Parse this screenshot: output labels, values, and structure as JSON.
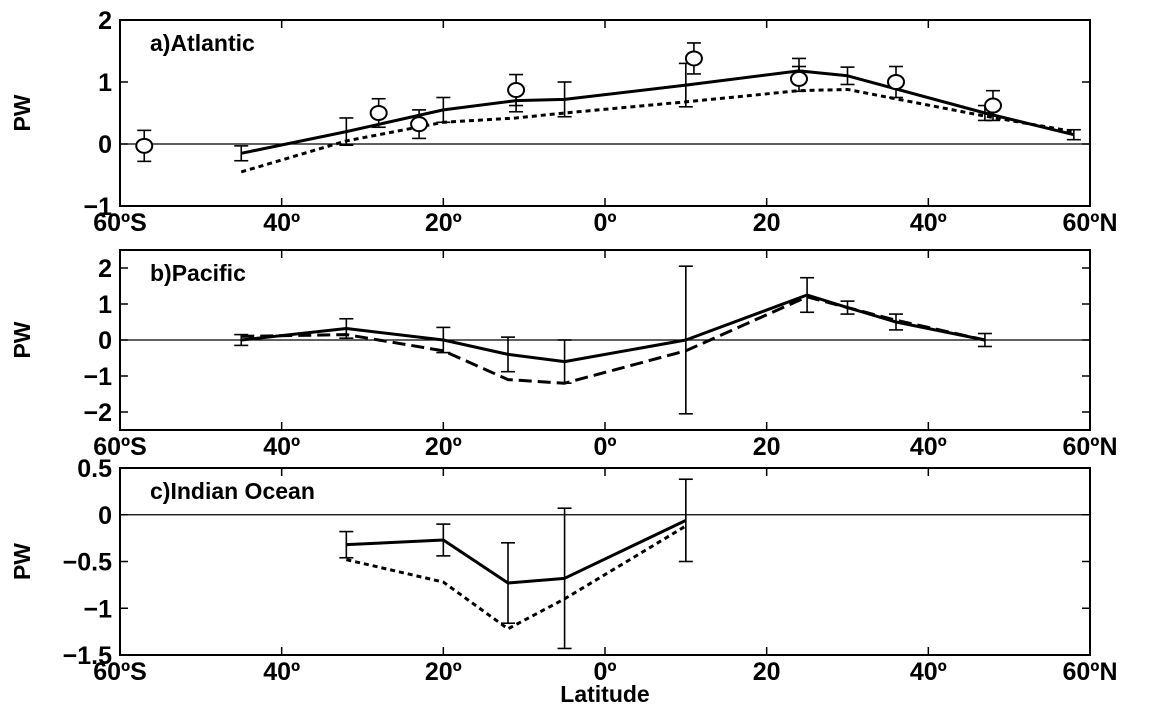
{
  "chart_data": [
    {
      "type": "line",
      "title": "a)Atlantic",
      "ylabel": "PW",
      "xlabel": "",
      "xlim": [
        -60,
        60
      ],
      "ylim": [
        -1,
        2
      ],
      "x_ticks": [
        -60,
        -40,
        -20,
        0,
        20,
        40,
        60
      ],
      "x_tick_labels": [
        "60ºS",
        "40º",
        "20º",
        "0º",
        "20",
        "40º",
        "60ºN"
      ],
      "y_ticks": [
        -1,
        0,
        1,
        2
      ],
      "y_tick_labels": [
        "−1",
        "0",
        "1",
        "2"
      ],
      "zero_line": true,
      "series": [
        {
          "style": "solid",
          "x": [
            -45,
            -32,
            -20,
            -11,
            -5,
            10,
            24,
            30,
            47,
            58
          ],
          "y": [
            -0.15,
            0.2,
            0.55,
            0.7,
            0.72,
            0.95,
            1.18,
            1.1,
            0.5,
            0.15
          ]
        },
        {
          "style": "dotted",
          "x": [
            -45,
            -32,
            -20,
            -11,
            -5,
            10,
            24,
            30,
            47,
            58
          ],
          "y": [
            -0.45,
            0.05,
            0.35,
            0.42,
            0.5,
            0.68,
            0.86,
            0.88,
            0.45,
            0.2
          ]
        },
        {
          "style": "errorbar",
          "x": [
            -45,
            -32,
            -20,
            -11,
            -5,
            10,
            24,
            30,
            47,
            58
          ],
          "y": [
            -0.15,
            0.2,
            0.55,
            0.7,
            0.72,
            0.95,
            1.18,
            1.1,
            0.5,
            0.15
          ],
          "err": [
            0.12,
            0.22,
            0.2,
            0.18,
            0.28,
            0.35,
            0.2,
            0.14,
            0.12,
            0.08
          ]
        },
        {
          "style": "circle",
          "x": [
            -57,
            -28,
            -23,
            -11,
            11,
            24,
            36,
            48
          ],
          "y": [
            -0.03,
            0.5,
            0.32,
            0.87,
            1.38,
            1.05,
            1.0,
            0.62
          ],
          "err": [
            0.25,
            0.23,
            0.23,
            0.25,
            0.25,
            0.2,
            0.25,
            0.24
          ]
        }
      ]
    },
    {
      "type": "line",
      "title": "b)Pacific",
      "ylabel": "PW",
      "xlabel": "",
      "xlim": [
        -60,
        60
      ],
      "ylim": [
        -2.5,
        2.5
      ],
      "x_ticks": [
        -60,
        -40,
        -20,
        0,
        20,
        40,
        60
      ],
      "x_tick_labels": [
        "60ºS",
        "40º",
        "20º",
        "0º",
        "20",
        "40º",
        "60ºN"
      ],
      "y_ticks": [
        -2,
        -1,
        0,
        1,
        2
      ],
      "y_tick_labels": [
        "−2",
        "−1",
        "0",
        "1",
        "2"
      ],
      "zero_line": true,
      "series": [
        {
          "style": "solid",
          "x": [
            -45,
            -32,
            -20,
            -12,
            -5,
            10,
            25,
            30,
            36,
            47
          ],
          "y": [
            0.0,
            0.32,
            0.0,
            -0.4,
            -0.6,
            0.0,
            1.25,
            0.9,
            0.5,
            0.0
          ]
        },
        {
          "style": "dashed",
          "x": [
            -45,
            -32,
            -20,
            -12,
            -5,
            10,
            25,
            30,
            36,
            47
          ],
          "y": [
            0.1,
            0.15,
            -0.3,
            -1.1,
            -1.2,
            -0.3,
            1.2,
            0.9,
            0.55,
            0.0
          ]
        },
        {
          "style": "errorbar",
          "x": [
            -45,
            -32,
            -20,
            -12,
            -5,
            10,
            25,
            30,
            36,
            47
          ],
          "y": [
            0.0,
            0.32,
            0.0,
            -0.4,
            -0.6,
            0.0,
            1.25,
            0.9,
            0.5,
            0.0
          ],
          "err": [
            0.15,
            0.27,
            0.35,
            0.48,
            0.6,
            2.05,
            0.48,
            0.18,
            0.22,
            0.18
          ]
        }
      ]
    },
    {
      "type": "line",
      "title": "c)Indian Ocean",
      "ylabel": "PW",
      "xlabel": "Latitude",
      "xlim": [
        -60,
        60
      ],
      "ylim": [
        -1.5,
        0.5
      ],
      "x_ticks": [
        -60,
        -40,
        -20,
        0,
        20,
        40,
        60
      ],
      "x_tick_labels": [
        "60ºS",
        "40º",
        "20º",
        "0º",
        "20",
        "40º",
        "60ºN"
      ],
      "y_ticks": [
        -1.5,
        -1,
        -0.5,
        0,
        0.5
      ],
      "y_tick_labels": [
        "−1.5",
        "−1",
        "−0.5",
        "0",
        "0.5"
      ],
      "zero_line": true,
      "series": [
        {
          "style": "solid",
          "x": [
            -32,
            -20,
            -12,
            -5,
            10
          ],
          "y": [
            -0.32,
            -0.27,
            -0.73,
            -0.68,
            -0.06
          ]
        },
        {
          "style": "dotted",
          "x": [
            -32,
            -20,
            -12,
            -5,
            10
          ],
          "y": [
            -0.48,
            -0.72,
            -1.22,
            -0.9,
            -0.12
          ]
        },
        {
          "style": "errorbar",
          "x": [
            -32,
            -20,
            -12,
            -5,
            10
          ],
          "y": [
            -0.32,
            -0.27,
            -0.73,
            -0.68,
            -0.06
          ],
          "err": [
            0.14,
            0.17,
            0.43,
            0.75,
            0.44
          ]
        }
      ]
    }
  ]
}
